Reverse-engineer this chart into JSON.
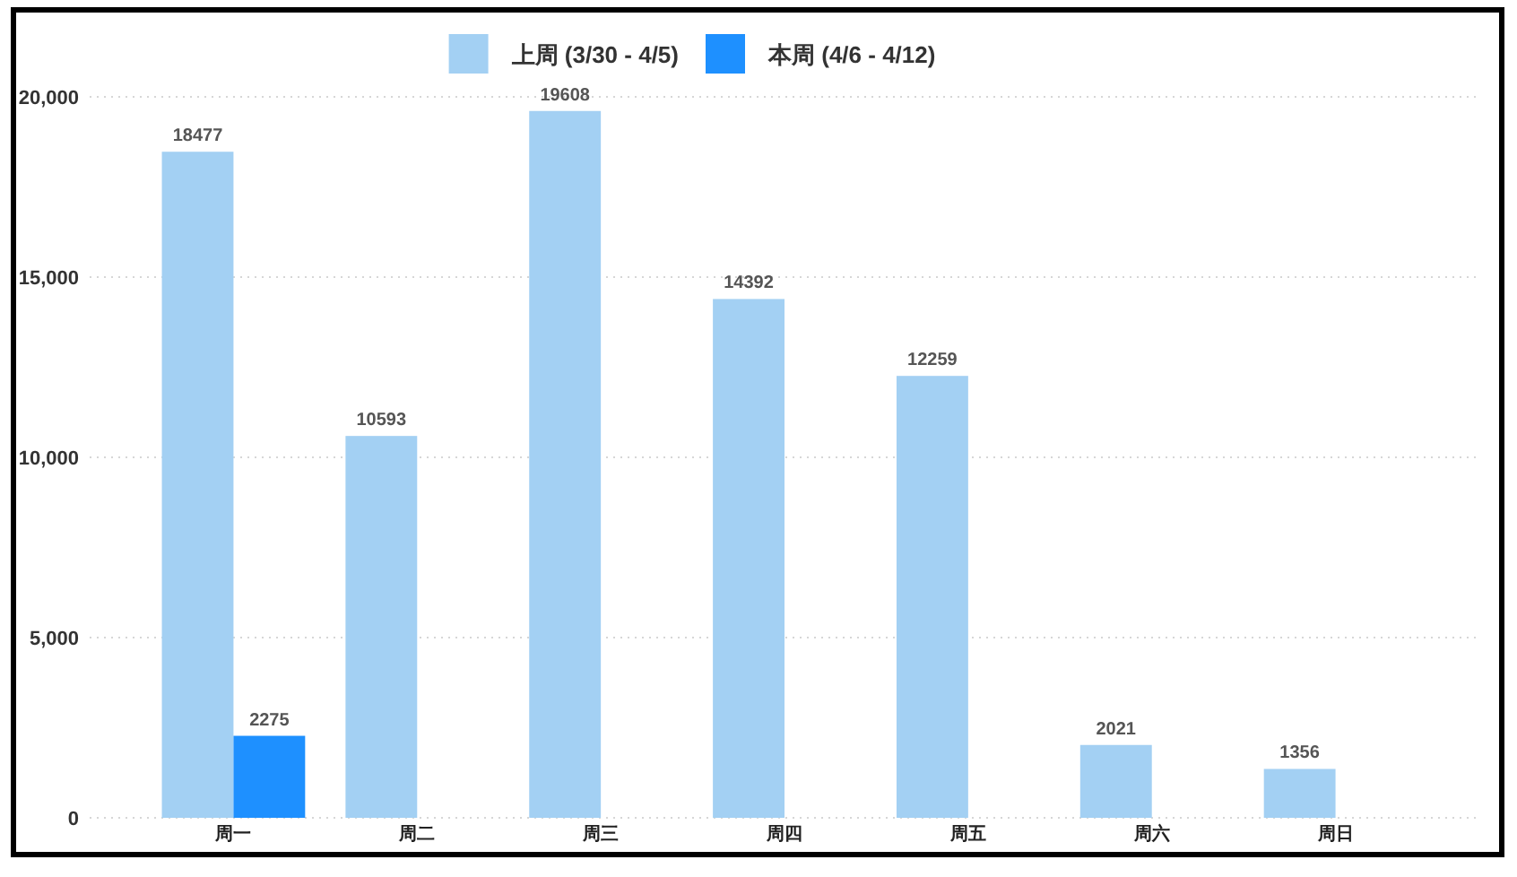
{
  "chart_data": {
    "type": "bar",
    "categories": [
      "周一",
      "周二",
      "周三",
      "周四",
      "周五",
      "周六",
      "周日"
    ],
    "series": [
      {
        "name": "上周 (3/30 - 4/5)",
        "color": "#a3d0f3",
        "values": [
          18477,
          10593,
          19608,
          14392,
          12259,
          2021,
          1356
        ]
      },
      {
        "name": "本周 (4/6 - 4/12)",
        "color": "#1e90ff",
        "values": [
          2275,
          null,
          null,
          null,
          null,
          null,
          null
        ]
      }
    ],
    "ylim": [
      0,
      20000
    ],
    "yticks": [
      0,
      {
        "value": 5000,
        "label": "5,000"
      },
      {
        "value": 10000,
        "label": "10,000"
      },
      {
        "value": 15000,
        "label": "15,000"
      },
      {
        "value": 20000,
        "label": "20,000"
      }
    ],
    "grid": "y",
    "legend": "top",
    "data_labels": true
  }
}
